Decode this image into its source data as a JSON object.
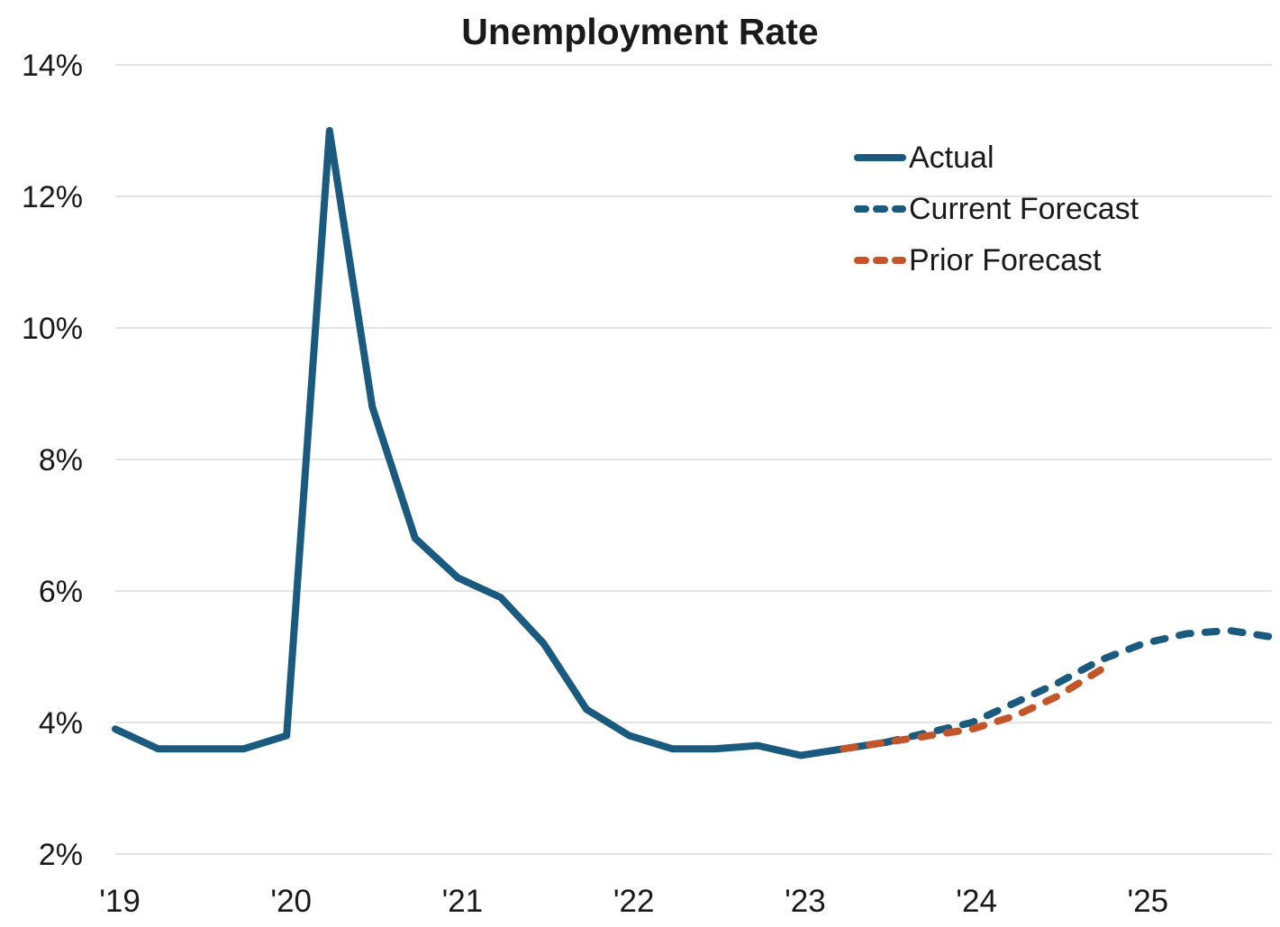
{
  "title": "Unemployment Rate",
  "legend": [
    {
      "label": "Actual",
      "style": "solid",
      "color": "#1A5A7F",
      "icon": "solid-line-icon"
    },
    {
      "label": "Current Forecast",
      "style": "dashed",
      "color": "#1A5A7F",
      "icon": "dashed-line-icon"
    },
    {
      "label": "Prior Forecast",
      "style": "dashed",
      "color": "#C3552B",
      "icon": "dashed-line-icon"
    }
  ],
  "colors": {
    "actual": "#1A5A7F",
    "current_forecast": "#1A5A7F",
    "prior_forecast": "#C3552B",
    "gridline": "#E4E4E4",
    "text": "#1A1A1A",
    "background": "#FFFFFF"
  },
  "chart_data": {
    "type": "line",
    "title": "Unemployment Rate",
    "xlabel": "",
    "ylabel": "",
    "grid": true,
    "legend_position": "upper right",
    "ylim": [
      2,
      14
    ],
    "y_ticks": [
      2,
      4,
      6,
      8,
      10,
      12,
      14
    ],
    "y_tick_labels": [
      "2%",
      "4%",
      "6%",
      "8%",
      "10%",
      "12%",
      "14%"
    ],
    "x_tick_labels": [
      "'19",
      "'20",
      "'21",
      "'22",
      "'23",
      "'24",
      "'25"
    ],
    "x_tick_quarter_index": [
      0,
      4,
      8,
      12,
      16,
      20,
      24
    ],
    "x_quarters": [
      "2019Q1",
      "2019Q2",
      "2019Q3",
      "2019Q4",
      "2020Q1",
      "2020Q2",
      "2020Q3",
      "2020Q4",
      "2021Q1",
      "2021Q2",
      "2021Q3",
      "2021Q4",
      "2022Q1",
      "2022Q2",
      "2022Q3",
      "2022Q4",
      "2023Q1",
      "2023Q2",
      "2023Q3",
      "2023Q4",
      "2024Q1",
      "2024Q2",
      "2024Q3",
      "2024Q4",
      "2025Q1",
      "2025Q2",
      "2025Q3",
      "2025Q4"
    ],
    "series": [
      {
        "name": "Actual",
        "color": "#1A5A7F",
        "dash": false,
        "values": [
          3.9,
          3.6,
          3.6,
          3.6,
          3.8,
          13.0,
          8.8,
          6.8,
          6.2,
          5.9,
          5.2,
          4.2,
          3.8,
          3.6,
          3.6,
          3.65,
          3.5,
          3.6,
          3.7,
          null,
          null,
          null,
          null,
          null,
          null,
          null,
          null,
          null
        ]
      },
      {
        "name": "Current Forecast",
        "color": "#1A5A7F",
        "dash": true,
        "values": [
          null,
          null,
          null,
          null,
          null,
          null,
          null,
          null,
          null,
          null,
          null,
          null,
          null,
          null,
          null,
          null,
          null,
          null,
          3.7,
          3.85,
          4.0,
          4.3,
          4.6,
          4.95,
          5.2,
          5.35,
          5.4,
          5.3
        ]
      },
      {
        "name": "Prior Forecast",
        "color": "#C3552B",
        "dash": true,
        "values": [
          null,
          null,
          null,
          null,
          null,
          null,
          null,
          null,
          null,
          null,
          null,
          null,
          null,
          null,
          null,
          null,
          null,
          3.6,
          3.7,
          3.8,
          3.9,
          4.1,
          4.4,
          4.8,
          null,
          null,
          null,
          null
        ]
      }
    ]
  }
}
